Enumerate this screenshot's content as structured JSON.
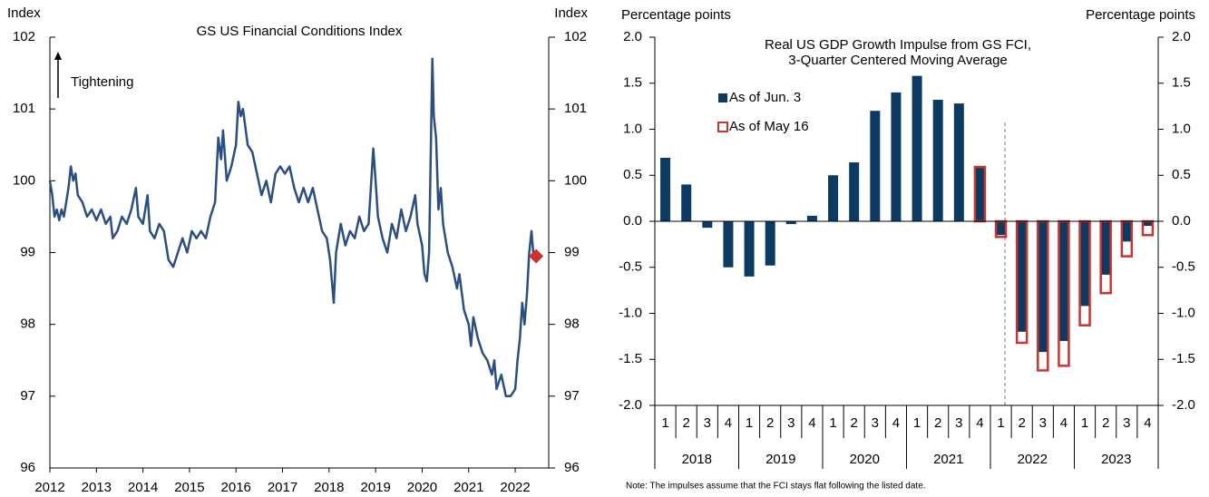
{
  "chart_data": [
    {
      "type": "line",
      "title": "GS US Financial Conditions Index",
      "ylabel": "Index",
      "y2label": "Index",
      "annotation": "Tightening",
      "xlim": [
        2012,
        2022.72
      ],
      "xticks": [
        2012,
        2013,
        2014,
        2015,
        2016,
        2017,
        2018,
        2019,
        2020,
        2021,
        2022
      ],
      "ylim": [
        96,
        102
      ],
      "yticks": [
        96,
        97,
        98,
        99,
        100,
        101,
        102
      ],
      "x": [
        2012.0,
        2012.05,
        2012.1,
        2012.15,
        2012.2,
        2012.25,
        2012.3,
        2012.35,
        2012.4,
        2012.45,
        2012.5,
        2012.55,
        2012.6,
        2012.7,
        2012.8,
        2012.9,
        2013.0,
        2013.1,
        2013.2,
        2013.3,
        2013.35,
        2013.45,
        2013.55,
        2013.65,
        2013.75,
        2013.85,
        2013.9,
        2014.0,
        2014.1,
        2014.15,
        2014.25,
        2014.35,
        2014.45,
        2014.55,
        2014.65,
        2014.75,
        2014.85,
        2014.95,
        2015.05,
        2015.15,
        2015.25,
        2015.35,
        2015.45,
        2015.55,
        2015.62,
        2015.68,
        2015.72,
        2015.8,
        2015.9,
        2016.0,
        2016.05,
        2016.1,
        2016.15,
        2016.25,
        2016.35,
        2016.45,
        2016.55,
        2016.65,
        2016.75,
        2016.85,
        2016.95,
        2017.05,
        2017.15,
        2017.25,
        2017.35,
        2017.45,
        2017.55,
        2017.65,
        2017.75,
        2017.85,
        2017.95,
        2018.02,
        2018.1,
        2018.15,
        2018.25,
        2018.35,
        2018.45,
        2018.55,
        2018.65,
        2018.75,
        2018.85,
        2018.95,
        2019.0,
        2019.05,
        2019.15,
        2019.25,
        2019.35,
        2019.45,
        2019.55,
        2019.65,
        2019.75,
        2019.85,
        2019.9,
        2020.0,
        2020.05,
        2020.1,
        2020.15,
        2020.22,
        2020.25,
        2020.3,
        2020.35,
        2020.4,
        2020.45,
        2020.55,
        2020.65,
        2020.75,
        2020.8,
        2020.9,
        2021.0,
        2021.05,
        2021.1,
        2021.2,
        2021.3,
        2021.4,
        2021.5,
        2021.55,
        2021.6,
        2021.7,
        2021.8,
        2021.9,
        2022.0,
        2022.05,
        2022.1,
        2022.15,
        2022.2,
        2022.25,
        2022.3,
        2022.35,
        2022.4
      ],
      "series": [
        {
          "color": "#2b4f82",
          "values": [
            100.0,
            99.8,
            99.5,
            99.6,
            99.45,
            99.6,
            99.5,
            99.7,
            99.9,
            100.2,
            100.0,
            100.1,
            99.8,
            99.7,
            99.5,
            99.6,
            99.45,
            99.6,
            99.4,
            99.5,
            99.2,
            99.3,
            99.5,
            99.4,
            99.6,
            99.9,
            99.5,
            99.4,
            99.8,
            99.3,
            99.2,
            99.4,
            99.3,
            98.9,
            98.8,
            99.0,
            99.2,
            99.0,
            99.3,
            99.2,
            99.3,
            99.2,
            99.5,
            99.7,
            100.6,
            100.3,
            100.7,
            100.0,
            100.2,
            100.5,
            101.1,
            100.9,
            101.0,
            100.5,
            100.4,
            100.1,
            99.8,
            100.0,
            99.7,
            100.1,
            100.2,
            100.1,
            100.2,
            99.9,
            99.7,
            99.9,
            99.7,
            99.9,
            99.6,
            99.3,
            99.2,
            98.9,
            98.3,
            99.0,
            99.4,
            99.1,
            99.3,
            99.2,
            99.5,
            99.3,
            99.4,
            100.45,
            100.0,
            99.5,
            99.2,
            99.0,
            99.4,
            99.2,
            99.6,
            99.3,
            99.5,
            99.8,
            99.4,
            99.1,
            98.7,
            98.6,
            99.0,
            101.7,
            100.9,
            100.6,
            99.6,
            99.9,
            99.4,
            99.0,
            98.8,
            98.5,
            98.7,
            98.2,
            98.0,
            97.7,
            98.1,
            97.8,
            97.6,
            97.5,
            97.3,
            97.5,
            97.1,
            97.3,
            97.0,
            97.0,
            97.1,
            97.5,
            97.8,
            98.3,
            98.0,
            98.4,
            99.0,
            99.3,
            98.9
          ]
        }
      ],
      "marker": {
        "x": 2022.45,
        "y": 98.95,
        "color": "#c8342e"
      }
    },
    {
      "type": "bar",
      "title": [
        "Real US GDP Growth Impulse from GS FCI,",
        "3-Quarter Centered Moving Average"
      ],
      "ylabel": "Percentage points",
      "y2label": "Percentage points",
      "legend": "upper left",
      "note": "Note: The impulses assume that the FCI stays flat following the listed date.",
      "categories": [
        "1",
        "2",
        "3",
        "4",
        "1",
        "2",
        "3",
        "4",
        "1",
        "2",
        "3",
        "4",
        "1",
        "2",
        "3",
        "4",
        "1",
        "2",
        "3",
        "4",
        "1",
        "2",
        "3",
        "4"
      ],
      "groups": [
        "2018",
        "2019",
        "2020",
        "2021",
        "2022",
        "2023"
      ],
      "ylim": [
        -2,
        2
      ],
      "yticks": [
        {
          "value": -2,
          "label": "-2.0"
        },
        {
          "value": -1.5,
          "label": "-1.5"
        },
        {
          "value": -1,
          "label": "-1.0"
        },
        {
          "value": -0.5,
          "label": "-0.5"
        },
        {
          "value": 0,
          "label": "0.0"
        },
        {
          "value": 0.5,
          "label": "0.5"
        },
        {
          "value": 1,
          "label": "1.0"
        },
        {
          "value": 1.5,
          "label": "1.5"
        },
        {
          "value": 2,
          "label": "2.0"
        }
      ],
      "series": [
        {
          "name": "As of Jun. 3",
          "color": "#0d3a63",
          "fill": true,
          "values": [
            0.69,
            0.4,
            -0.07,
            -0.5,
            -0.6,
            -0.48,
            -0.03,
            0.06,
            0.5,
            0.64,
            1.2,
            1.4,
            1.58,
            1.32,
            1.28,
            0.59,
            -0.15,
            -1.2,
            -1.42,
            -1.3,
            -0.92,
            -0.58,
            -0.22,
            -0.05
          ]
        },
        {
          "name": "As of May 16",
          "color": "#c8342e",
          "fill": false,
          "values": [
            null,
            null,
            null,
            null,
            null,
            null,
            null,
            null,
            null,
            null,
            null,
            null,
            null,
            null,
            null,
            0.59,
            -0.17,
            -1.32,
            -1.62,
            -1.57,
            -1.13,
            -0.78,
            -0.38,
            -0.15
          ]
        }
      ]
    }
  ]
}
